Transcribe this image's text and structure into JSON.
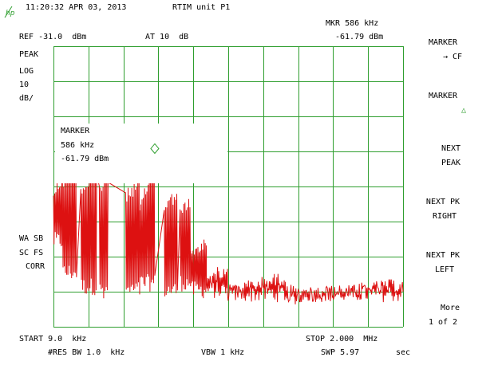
{
  "header": {
    "timestamp": "11:20:32 APR 03, 2013",
    "title": "RTIM unit P1",
    "marker_readout_label": "MKR 586 kHz",
    "marker_readout_value": "-61.79 dBm",
    "ref_level": "REF -31.0  dBm",
    "attenuation": "AT 10  dB"
  },
  "left_panel": {
    "detector": "PEAK",
    "scale_type": "LOG",
    "scale_value": "10",
    "scale_unit": "dB/",
    "flags": [
      "WA SB",
      "SC FS",
      "CORR"
    ]
  },
  "marker_box": {
    "title": "MARKER",
    "frequency": "586 kHz",
    "amplitude": "-61.79 dBm"
  },
  "softkeys": [
    {
      "line1": "MARKER",
      "line2": "→ CF"
    },
    {
      "line1": "MARKER",
      "line2": "△"
    },
    {
      "line1": "NEXT",
      "line2": "PEAK"
    },
    {
      "line1": "NEXT PK",
      "line2": "RIGHT"
    },
    {
      "line1": "NEXT PK",
      "line2": "LEFT"
    },
    {
      "line1": "More",
      "line2": "1 of 2"
    }
  ],
  "footer": {
    "start": "START 9.0  kHz",
    "stop": "STOP 2.000  MHz",
    "res_bw": "#RES BW 1.0  kHz",
    "vbw": "VBW 1 kHz",
    "sweep": "SWP 5.97",
    "sweep_unit": "sec"
  },
  "colors": {
    "grid": "#2e9e2e",
    "trace": "#dd1111",
    "text": "#000000",
    "marker_symbol": "#2e9e2e"
  },
  "trace": {
    "start_khz": 9,
    "stop_khz": 2000,
    "ref_dbm": -31,
    "db_per_div": 10,
    "marker_khz": 586,
    "marker_dbm": -61.79
  }
}
